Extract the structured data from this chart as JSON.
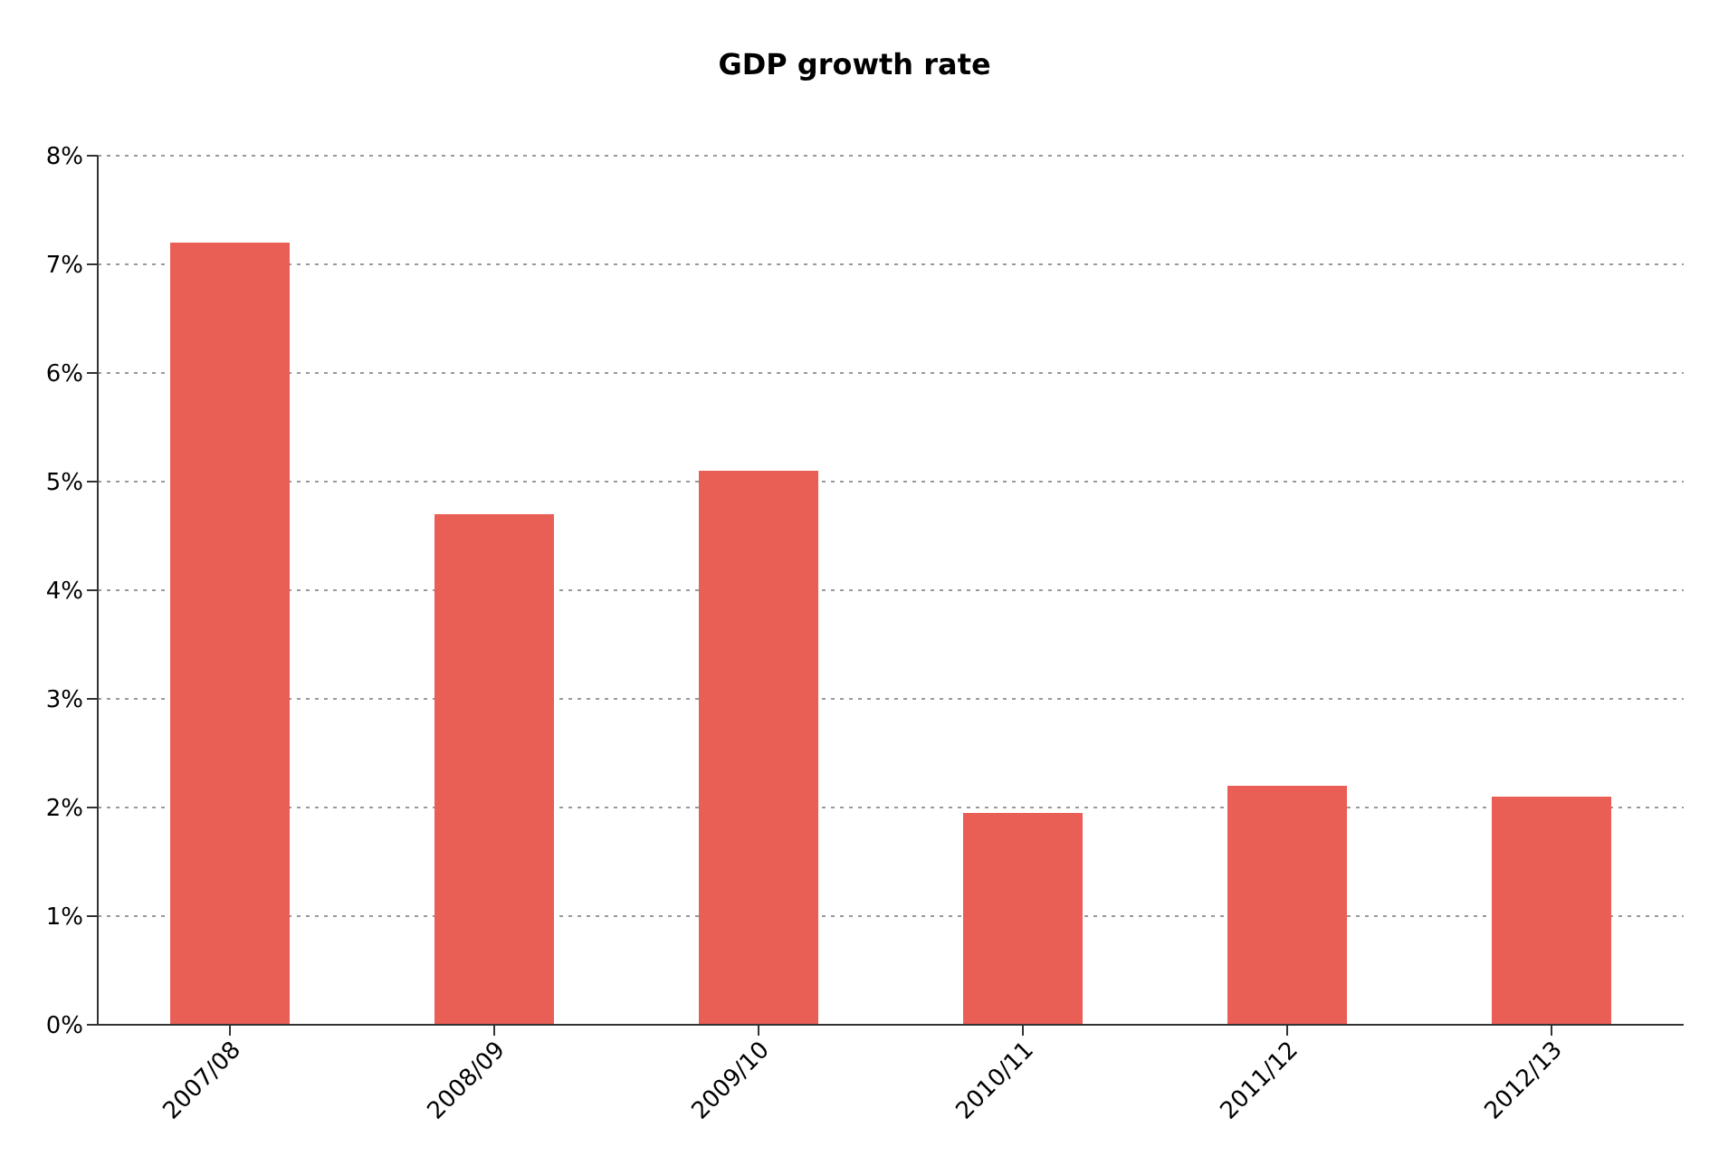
{
  "chart_data": {
    "type": "bar",
    "title": "GDP growth rate",
    "categories": [
      "2007/08",
      "2008/09",
      "2009/10",
      "2010/11",
      "2011/12",
      "2012/13"
    ],
    "values": [
      7.2,
      4.7,
      5.1,
      1.95,
      2.2,
      2.1
    ],
    "color": "#e95e55",
    "ylim": [
      0,
      8
    ],
    "yticks": [
      {
        "value": 0,
        "label": "0%"
      },
      {
        "value": 1,
        "label": "1%"
      },
      {
        "value": 2,
        "label": "2%"
      },
      {
        "value": 3,
        "label": "3%"
      },
      {
        "value": 4,
        "label": "4%"
      },
      {
        "value": 5,
        "label": "5%"
      },
      {
        "value": 6,
        "label": "6%"
      },
      {
        "value": 7,
        "label": "7%"
      },
      {
        "value": 8,
        "label": "8%"
      }
    ],
    "grid": "y",
    "legend": false
  }
}
